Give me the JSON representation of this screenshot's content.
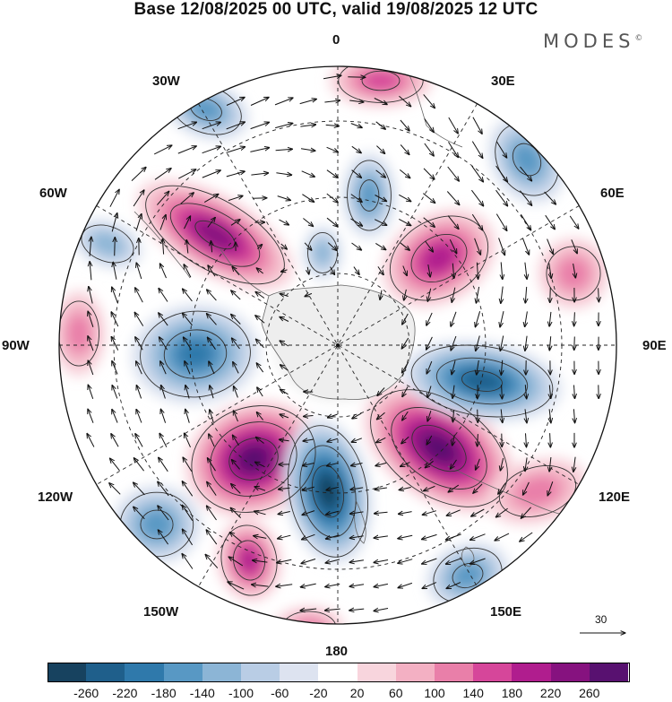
{
  "title": "Base 12/08/2025 00 UTC, valid 19/08/2025 12 UTC",
  "brand": "MODES",
  "brand_mark": "©",
  "longitude_labels": {
    "lon_0": "0",
    "lon_30e": "30E",
    "lon_60e": "60E",
    "lon_90e": "90E",
    "lon_120e": "120E",
    "lon_150e": "150E",
    "lon_180": "180",
    "lon_150w": "150W",
    "lon_120w": "120W",
    "lon_90w": "90W",
    "lon_60w": "60W",
    "lon_30w": "30W"
  },
  "vector_reference": "30",
  "colorbar": {
    "ticks": [
      "-260",
      "-220",
      "-180",
      "-140",
      "-100",
      "-60",
      "-20",
      "20",
      "60",
      "100",
      "140",
      "180",
      "220",
      "260"
    ],
    "colors": [
      "#17425f",
      "#1f5f8b",
      "#2f79ab",
      "#5898c4",
      "#8cb5d6",
      "#b9cde5",
      "#dde3f0",
      "#ffffff",
      "#f8d5dd",
      "#f3b0c3",
      "#e97fa9",
      "#d6469a",
      "#b01d8e",
      "#86127f",
      "#581170"
    ]
  },
  "chart_data": {
    "type": "polar-stereographic anomaly map",
    "field": "geopotential height anomaly with wind vectors",
    "projection": "south polar stereographic",
    "contour_levels": [
      -260,
      -220,
      -180,
      -140,
      -100,
      -60,
      -20,
      20,
      60,
      100,
      140,
      180,
      220,
      260
    ],
    "anomaly_centers": [
      {
        "name": "positive-over-south-pacific-165w",
        "sign": "positive",
        "peak": 260
      },
      {
        "name": "positive-over-south-of-australia",
        "sign": "positive",
        "peak": 260
      },
      {
        "name": "negative-near-160e-150e",
        "sign": "negative",
        "peak": -260
      },
      {
        "name": "negative-south-indian-ocean-90e",
        "sign": "negative",
        "peak": -220
      },
      {
        "name": "positive-south-atlantic-50w",
        "sign": "positive",
        "peak": 220
      },
      {
        "name": "negative-bellingshausen-80w",
        "sign": "negative",
        "peak": -180
      },
      {
        "name": "positive-south-of-africa-20e",
        "sign": "positive",
        "peak": 140
      },
      {
        "name": "positive-indian-ocean-45e",
        "sign": "positive",
        "peak": 180
      },
      {
        "name": "negative-near-south-africa-30e",
        "sign": "negative",
        "peak": -140
      },
      {
        "name": "negative-weddell-30w",
        "sign": "negative",
        "peak": -140
      },
      {
        "name": "negative-south-pacific-125w",
        "sign": "negative",
        "peak": -140
      },
      {
        "name": "negative-south-of-new-zealand-150e",
        "sign": "negative",
        "peak": -140
      },
      {
        "name": "positive-south-pacific-145w",
        "sign": "positive",
        "peak": 180
      }
    ],
    "vector_reference_magnitude": 30
  }
}
